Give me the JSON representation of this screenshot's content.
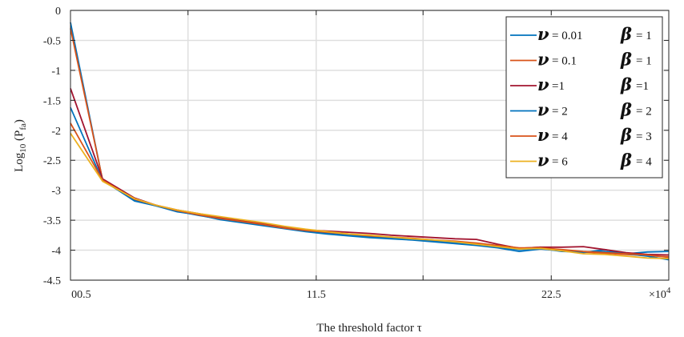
{
  "chart_data": {
    "type": "line",
    "xlabel": "The threshold factor τ",
    "ylabel": "Log10 (Pfa)",
    "ylabel_parts": {
      "pre": "Log",
      "sub": "10",
      "mid": " (P",
      "sub2": "fa",
      "post": ")"
    },
    "x_multiplier": "×10",
    "x_multiplier_exp": "4",
    "xlim": [
      0,
      28
    ],
    "ylim": [
      -4.5,
      0
    ],
    "grid": true,
    "legend_position": "top-right",
    "x_ticks": [
      {
        "value": 0.5,
        "label": "00.5"
      },
      {
        "value": 11.5,
        "label": "11.5"
      },
      {
        "value": 22.5,
        "label": "22.5"
      }
    ],
    "x_gridlines": [
      5.5,
      11.5,
      16.5,
      22.5
    ],
    "y_ticks": [
      0,
      -0.5,
      -1,
      -1.5,
      -2,
      -2.5,
      -3,
      -3.5,
      -4,
      -4.5
    ],
    "y_tick_labels": [
      "0",
      "-0.5",
      "-1",
      "-1.5",
      "-2",
      "-2.5",
      "-3",
      "-3.5",
      "-4",
      "-4.5"
    ],
    "x": [
      0,
      1.5,
      3,
      4,
      5,
      6,
      7,
      8,
      9,
      10,
      11,
      12,
      13,
      14,
      15,
      16,
      17,
      18,
      19,
      20,
      21,
      22,
      23,
      24,
      25,
      26,
      27,
      28
    ],
    "series": [
      {
        "name": "ν = 0.01   β = 1",
        "nu": "ν",
        "nu_val": "= 0.01",
        "beta": "β",
        "beta_val": "= 1",
        "color": "#0072BD",
        "values": [
          -0.2,
          -2.83,
          -3.18,
          -3.26,
          -3.36,
          -3.41,
          -3.49,
          -3.54,
          -3.59,
          -3.64,
          -3.69,
          -3.73,
          -3.76,
          -3.79,
          -3.81,
          -3.83,
          -3.86,
          -3.89,
          -3.92,
          -3.96,
          -4.02,
          -3.98,
          -4.01,
          -4.04,
          -3.99,
          -4.06,
          -4.03,
          -4.02
        ]
      },
      {
        "name": "ν = 0.1   β = 1",
        "nu": "ν",
        "nu_val": "= 0.1",
        "beta": "β",
        "beta_val": "= 1",
        "color": "#D95319",
        "values": [
          -0.3,
          -2.82,
          -3.15,
          -3.25,
          -3.34,
          -3.4,
          -3.46,
          -3.52,
          -3.57,
          -3.62,
          -3.67,
          -3.71,
          -3.74,
          -3.77,
          -3.79,
          -3.81,
          -3.84,
          -3.86,
          -3.89,
          -3.93,
          -3.97,
          -3.95,
          -4.0,
          -4.03,
          -4.05,
          -4.07,
          -4.09,
          -4.11
        ]
      },
      {
        "name": "ν =1   β =1",
        "nu": "ν",
        "nu_val": "=1",
        "beta": "β",
        "beta_val": "=1",
        "color": "#A2142F",
        "values": [
          -1.3,
          -2.81,
          -3.13,
          -3.25,
          -3.33,
          -3.39,
          -3.45,
          -3.51,
          -3.56,
          -3.61,
          -3.66,
          -3.68,
          -3.7,
          -3.72,
          -3.75,
          -3.77,
          -3.79,
          -3.81,
          -3.82,
          -3.9,
          -3.97,
          -3.95,
          -3.95,
          -3.94,
          -3.99,
          -4.04,
          -4.07,
          -4.08
        ]
      },
      {
        "name": "ν = 2   β = 2",
        "nu": "ν",
        "nu_val": "= 2",
        "beta": "β",
        "beta_val": "= 2",
        "color": "#0072BD",
        "values": [
          -1.62,
          -2.84,
          -3.16,
          -3.26,
          -3.35,
          -3.42,
          -3.48,
          -3.53,
          -3.58,
          -3.63,
          -3.68,
          -3.72,
          -3.75,
          -3.78,
          -3.8,
          -3.82,
          -3.85,
          -3.88,
          -3.91,
          -3.95,
          -3.99,
          -3.97,
          -4.02,
          -4.03,
          -4.02,
          -4.06,
          -4.1,
          -4.16
        ]
      },
      {
        "name": "ν = 4   β = 3",
        "nu": "ν",
        "nu_val": "= 4",
        "beta": "β",
        "beta_val": "= 3",
        "color": "#D95319",
        "values": [
          -1.88,
          -2.83,
          -3.15,
          -3.25,
          -3.34,
          -3.41,
          -3.47,
          -3.52,
          -3.57,
          -3.63,
          -3.67,
          -3.7,
          -3.73,
          -3.76,
          -3.78,
          -3.8,
          -3.83,
          -3.85,
          -3.88,
          -3.92,
          -3.96,
          -3.96,
          -3.99,
          -4.02,
          -4.04,
          -4.06,
          -4.08,
          -4.12
        ]
      },
      {
        "name": "ν = 6   β = 4",
        "nu": "ν",
        "nu_val": "= 6",
        "beta": "β",
        "beta_val": "= 4",
        "color": "#EDB120",
        "values": [
          -2.05,
          -2.85,
          -3.14,
          -3.25,
          -3.33,
          -3.39,
          -3.44,
          -3.49,
          -3.54,
          -3.6,
          -3.65,
          -3.69,
          -3.73,
          -3.75,
          -3.78,
          -3.81,
          -3.83,
          -3.86,
          -3.9,
          -3.94,
          -3.98,
          -3.97,
          -4.01,
          -4.06,
          -4.07,
          -4.1,
          -4.13,
          -4.14
        ]
      }
    ]
  }
}
